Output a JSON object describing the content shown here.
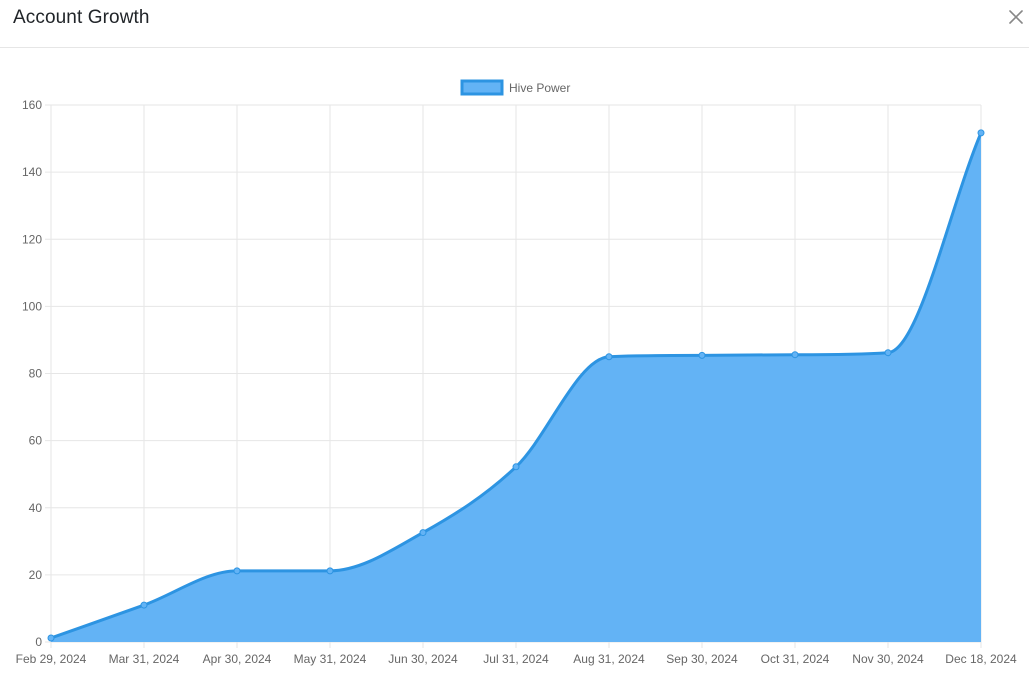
{
  "modal": {
    "title": "Account Growth",
    "close_icon": "close-icon"
  },
  "colors": {
    "line": "#2d94e2",
    "fill": "#63b3f5",
    "grid": "#e6e6e6",
    "tick_text": "#666666"
  },
  "chart_data": {
    "type": "area",
    "title": "",
    "xlabel": "",
    "ylabel": "",
    "x": [
      "Feb 29, 2024",
      "Mar 31, 2024",
      "Apr 30, 2024",
      "May 31, 2024",
      "Jun 30, 2024",
      "Jul 31, 2024",
      "Aug 31, 2024",
      "Sep 30, 2024",
      "Oct 31, 2024",
      "Nov 30, 2024",
      "Dec 18, 2024"
    ],
    "series": [
      {
        "name": "Hive Power",
        "values": [
          1.2,
          11,
          21.2,
          21.2,
          32.6,
          52.2,
          85,
          85.4,
          85.6,
          86.2,
          151.7
        ]
      }
    ],
    "ylim": [
      0,
      160
    ],
    "yticks": [
      0,
      20,
      40,
      60,
      80,
      100,
      120,
      140,
      160
    ],
    "grid": true,
    "legend": "top-center"
  }
}
